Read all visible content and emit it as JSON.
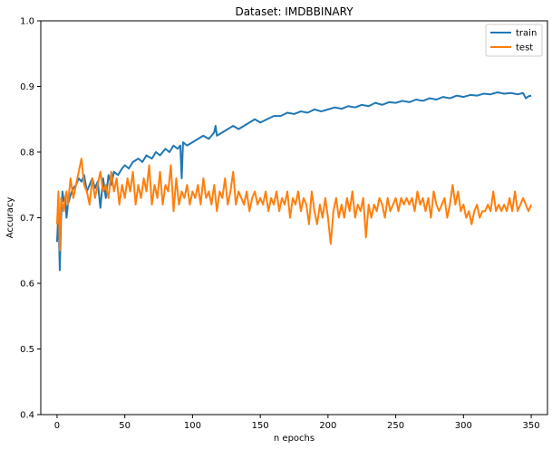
{
  "chart_data": {
    "type": "line",
    "title": "Dataset: IMDBBINARY",
    "xlabel": "n epochs",
    "ylabel": "Accuracy",
    "xlim": [
      -12,
      362
    ],
    "ylim": [
      0.4,
      1.0
    ],
    "xticks": [
      0,
      50,
      100,
      150,
      200,
      250,
      300,
      350
    ],
    "yticks": [
      0.4,
      0.5,
      0.6,
      0.7,
      0.8,
      0.9,
      1.0
    ],
    "xtick_labels": [
      "0",
      "50",
      "100",
      "150",
      "200",
      "250",
      "300",
      "350"
    ],
    "ytick_labels": [
      "0.4",
      "0.5",
      "0.6",
      "0.7",
      "0.8",
      "0.9",
      "1.0"
    ],
    "grid": false,
    "legend_position": "top-right",
    "series": [
      {
        "name": "train",
        "color": "#1f77b4",
        "points": [
          [
            0,
            0.663
          ],
          [
            1,
            0.71
          ],
          [
            2,
            0.62
          ],
          [
            3,
            0.7
          ],
          [
            4,
            0.74
          ],
          [
            5,
            0.725
          ],
          [
            6,
            0.73
          ],
          [
            7,
            0.7
          ],
          [
            8,
            0.72
          ],
          [
            10,
            0.735
          ],
          [
            12,
            0.745
          ],
          [
            14,
            0.75
          ],
          [
            16,
            0.76
          ],
          [
            18,
            0.755
          ],
          [
            20,
            0.765
          ],
          [
            22,
            0.74
          ],
          [
            24,
            0.75
          ],
          [
            26,
            0.76
          ],
          [
            28,
            0.745
          ],
          [
            30,
            0.755
          ],
          [
            32,
            0.715
          ],
          [
            34,
            0.76
          ],
          [
            36,
            0.73
          ],
          [
            38,
            0.765
          ],
          [
            40,
            0.75
          ],
          [
            42,
            0.77
          ],
          [
            45,
            0.765
          ],
          [
            48,
            0.775
          ],
          [
            50,
            0.78
          ],
          [
            53,
            0.775
          ],
          [
            56,
            0.785
          ],
          [
            60,
            0.79
          ],
          [
            63,
            0.785
          ],
          [
            66,
            0.795
          ],
          [
            70,
            0.79
          ],
          [
            73,
            0.8
          ],
          [
            76,
            0.795
          ],
          [
            80,
            0.805
          ],
          [
            83,
            0.8
          ],
          [
            86,
            0.81
          ],
          [
            89,
            0.805
          ],
          [
            91,
            0.81
          ],
          [
            92,
            0.76
          ],
          [
            93,
            0.815
          ],
          [
            96,
            0.81
          ],
          [
            100,
            0.815
          ],
          [
            104,
            0.82
          ],
          [
            108,
            0.825
          ],
          [
            112,
            0.82
          ],
          [
            116,
            0.83
          ],
          [
            117,
            0.84
          ],
          [
            118,
            0.825
          ],
          [
            122,
            0.83
          ],
          [
            126,
            0.835
          ],
          [
            130,
            0.84
          ],
          [
            134,
            0.835
          ],
          [
            138,
            0.84
          ],
          [
            142,
            0.845
          ],
          [
            146,
            0.85
          ],
          [
            150,
            0.845
          ],
          [
            155,
            0.85
          ],
          [
            160,
            0.855
          ],
          [
            165,
            0.855
          ],
          [
            170,
            0.86
          ],
          [
            175,
            0.858
          ],
          [
            180,
            0.862
          ],
          [
            185,
            0.86
          ],
          [
            190,
            0.865
          ],
          [
            195,
            0.862
          ],
          [
            200,
            0.865
          ],
          [
            205,
            0.868
          ],
          [
            210,
            0.866
          ],
          [
            215,
            0.87
          ],
          [
            220,
            0.868
          ],
          [
            225,
            0.872
          ],
          [
            230,
            0.87
          ],
          [
            235,
            0.875
          ],
          [
            240,
            0.872
          ],
          [
            245,
            0.876
          ],
          [
            250,
            0.875
          ],
          [
            255,
            0.878
          ],
          [
            260,
            0.876
          ],
          [
            265,
            0.88
          ],
          [
            270,
            0.878
          ],
          [
            275,
            0.882
          ],
          [
            280,
            0.88
          ],
          [
            285,
            0.884
          ],
          [
            290,
            0.882
          ],
          [
            295,
            0.886
          ],
          [
            300,
            0.884
          ],
          [
            305,
            0.887
          ],
          [
            310,
            0.886
          ],
          [
            315,
            0.889
          ],
          [
            320,
            0.888
          ],
          [
            325,
            0.891
          ],
          [
            330,
            0.889
          ],
          [
            335,
            0.89
          ],
          [
            340,
            0.888
          ],
          [
            344,
            0.89
          ],
          [
            346,
            0.882
          ],
          [
            348,
            0.885
          ],
          [
            350,
            0.886
          ]
        ]
      },
      {
        "name": "test",
        "color": "#ff7f0e",
        "points": [
          [
            0,
            0.69
          ],
          [
            1,
            0.74
          ],
          [
            2,
            0.65
          ],
          [
            3,
            0.73
          ],
          [
            4,
            0.72
          ],
          [
            5,
            0.71
          ],
          [
            6,
            0.73
          ],
          [
            7,
            0.74
          ],
          [
            8,
            0.72
          ],
          [
            10,
            0.76
          ],
          [
            12,
            0.73
          ],
          [
            14,
            0.75
          ],
          [
            16,
            0.77
          ],
          [
            18,
            0.79
          ],
          [
            20,
            0.75
          ],
          [
            22,
            0.74
          ],
          [
            24,
            0.72
          ],
          [
            26,
            0.76
          ],
          [
            28,
            0.73
          ],
          [
            30,
            0.75
          ],
          [
            32,
            0.77
          ],
          [
            34,
            0.74
          ],
          [
            36,
            0.75
          ],
          [
            38,
            0.73
          ],
          [
            40,
            0.77
          ],
          [
            42,
            0.74
          ],
          [
            44,
            0.76
          ],
          [
            46,
            0.72
          ],
          [
            48,
            0.75
          ],
          [
            50,
            0.73
          ],
          [
            52,
            0.76
          ],
          [
            54,
            0.74
          ],
          [
            56,
            0.77
          ],
          [
            58,
            0.72
          ],
          [
            60,
            0.75
          ],
          [
            62,
            0.73
          ],
          [
            64,
            0.76
          ],
          [
            66,
            0.74
          ],
          [
            68,
            0.78
          ],
          [
            70,
            0.72
          ],
          [
            72,
            0.75
          ],
          [
            74,
            0.73
          ],
          [
            76,
            0.77
          ],
          [
            78,
            0.72
          ],
          [
            80,
            0.75
          ],
          [
            82,
            0.74
          ],
          [
            84,
            0.78
          ],
          [
            86,
            0.71
          ],
          [
            88,
            0.76
          ],
          [
            90,
            0.72
          ],
          [
            92,
            0.74
          ],
          [
            94,
            0.73
          ],
          [
            96,
            0.75
          ],
          [
            98,
            0.72
          ],
          [
            100,
            0.74
          ],
          [
            102,
            0.73
          ],
          [
            104,
            0.75
          ],
          [
            106,
            0.72
          ],
          [
            108,
            0.76
          ],
          [
            110,
            0.73
          ],
          [
            112,
            0.74
          ],
          [
            114,
            0.72
          ],
          [
            116,
            0.75
          ],
          [
            118,
            0.71
          ],
          [
            120,
            0.74
          ],
          [
            122,
            0.73
          ],
          [
            124,
            0.76
          ],
          [
            126,
            0.72
          ],
          [
            128,
            0.74
          ],
          [
            130,
            0.77
          ],
          [
            132,
            0.72
          ],
          [
            134,
            0.74
          ],
          [
            136,
            0.73
          ],
          [
            138,
            0.72
          ],
          [
            140,
            0.74
          ],
          [
            142,
            0.71
          ],
          [
            144,
            0.73
          ],
          [
            146,
            0.74
          ],
          [
            148,
            0.72
          ],
          [
            150,
            0.73
          ],
          [
            152,
            0.72
          ],
          [
            154,
            0.74
          ],
          [
            156,
            0.71
          ],
          [
            158,
            0.73
          ],
          [
            160,
            0.72
          ],
          [
            162,
            0.74
          ],
          [
            164,
            0.71
          ],
          [
            166,
            0.73
          ],
          [
            168,
            0.72
          ],
          [
            170,
            0.74
          ],
          [
            172,
            0.7
          ],
          [
            174,
            0.73
          ],
          [
            176,
            0.72
          ],
          [
            178,
            0.74
          ],
          [
            180,
            0.71
          ],
          [
            182,
            0.73
          ],
          [
            184,
            0.72
          ],
          [
            186,
            0.69
          ],
          [
            188,
            0.74
          ],
          [
            190,
            0.71
          ],
          [
            192,
            0.69
          ],
          [
            194,
            0.72
          ],
          [
            196,
            0.7
          ],
          [
            198,
            0.73
          ],
          [
            200,
            0.7
          ],
          [
            202,
            0.66
          ],
          [
            204,
            0.71
          ],
          [
            206,
            0.73
          ],
          [
            208,
            0.7
          ],
          [
            210,
            0.72
          ],
          [
            212,
            0.7
          ],
          [
            214,
            0.73
          ],
          [
            216,
            0.71
          ],
          [
            218,
            0.74
          ],
          [
            220,
            0.7
          ],
          [
            222,
            0.72
          ],
          [
            224,
            0.71
          ],
          [
            226,
            0.73
          ],
          [
            228,
            0.67
          ],
          [
            230,
            0.72
          ],
          [
            232,
            0.7
          ],
          [
            234,
            0.72
          ],
          [
            236,
            0.71
          ],
          [
            238,
            0.73
          ],
          [
            240,
            0.72
          ],
          [
            242,
            0.7
          ],
          [
            244,
            0.73
          ],
          [
            246,
            0.71
          ],
          [
            248,
            0.72
          ],
          [
            250,
            0.73
          ],
          [
            252,
            0.71
          ],
          [
            254,
            0.73
          ],
          [
            256,
            0.72
          ],
          [
            258,
            0.73
          ],
          [
            260,
            0.72
          ],
          [
            262,
            0.73
          ],
          [
            264,
            0.71
          ],
          [
            266,
            0.74
          ],
          [
            268,
            0.72
          ],
          [
            270,
            0.73
          ],
          [
            272,
            0.71
          ],
          [
            274,
            0.73
          ],
          [
            276,
            0.7
          ],
          [
            278,
            0.74
          ],
          [
            280,
            0.72
          ],
          [
            282,
            0.71
          ],
          [
            284,
            0.72
          ],
          [
            286,
            0.73
          ],
          [
            288,
            0.7
          ],
          [
            290,
            0.72
          ],
          [
            292,
            0.75
          ],
          [
            294,
            0.72
          ],
          [
            296,
            0.74
          ],
          [
            298,
            0.71
          ],
          [
            300,
            0.72
          ],
          [
            302,
            0.7
          ],
          [
            304,
            0.71
          ],
          [
            306,
            0.69
          ],
          [
            308,
            0.71
          ],
          [
            310,
            0.72
          ],
          [
            312,
            0.7
          ],
          [
            314,
            0.71
          ],
          [
            316,
            0.71
          ],
          [
            318,
            0.72
          ],
          [
            320,
            0.71
          ],
          [
            322,
            0.74
          ],
          [
            324,
            0.71
          ],
          [
            326,
            0.72
          ],
          [
            328,
            0.71
          ],
          [
            330,
            0.72
          ],
          [
            332,
            0.71
          ],
          [
            334,
            0.73
          ],
          [
            336,
            0.71
          ],
          [
            338,
            0.74
          ],
          [
            340,
            0.71
          ],
          [
            342,
            0.72
          ],
          [
            344,
            0.73
          ],
          [
            346,
            0.72
          ],
          [
            348,
            0.71
          ],
          [
            350,
            0.72
          ]
        ]
      }
    ]
  }
}
